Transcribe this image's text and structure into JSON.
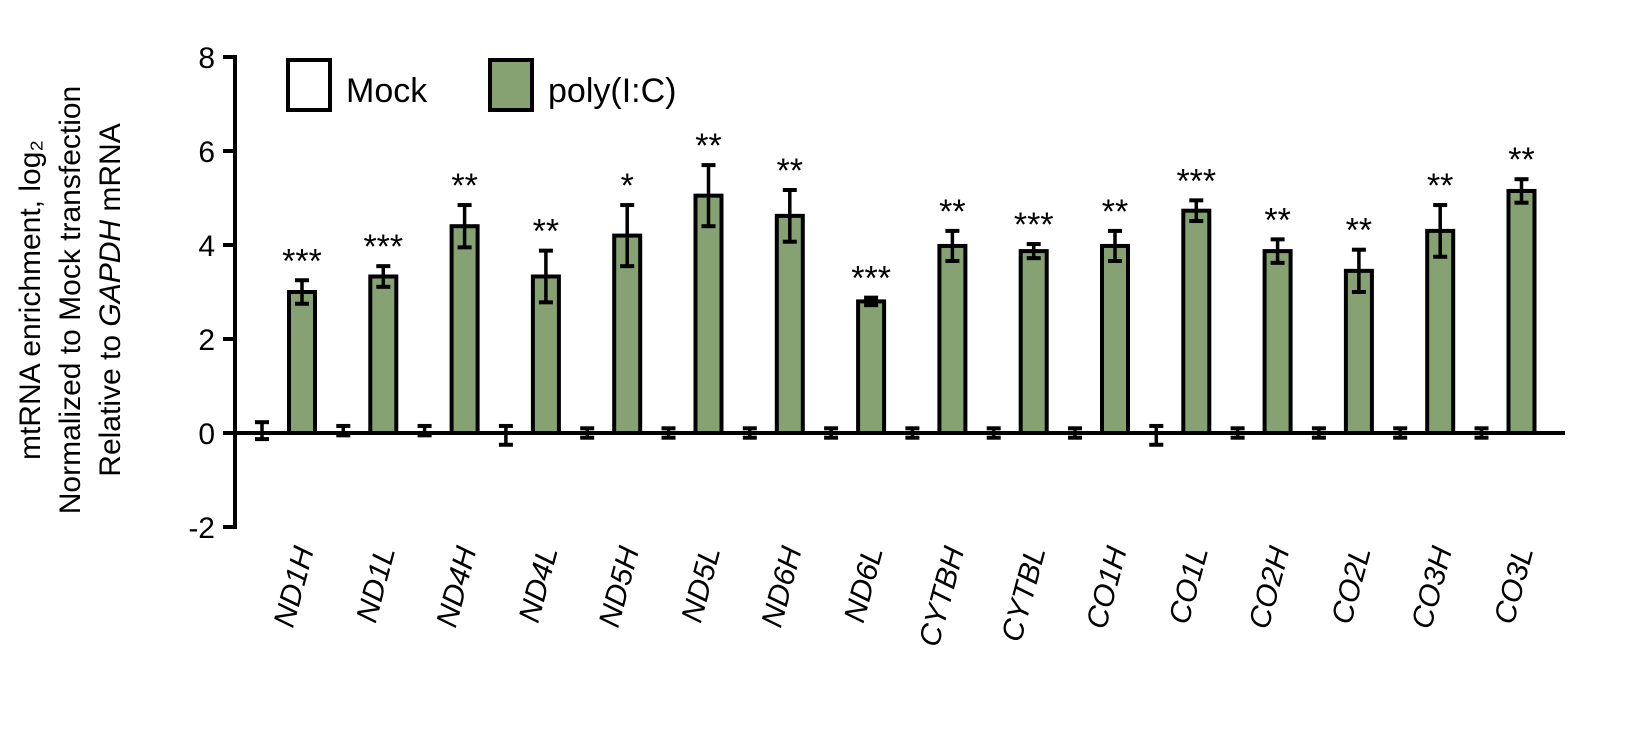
{
  "chart_data": {
    "type": "bar",
    "ylabel_lines": [
      "mtRNA enrichment, log₂",
      "Normalized to Mock transfection",
      "Relative to ",
      "GAPDH",
      " mRNA"
    ],
    "xlabel": "",
    "ylim": [
      -2,
      8
    ],
    "yticks": [
      "8",
      "6",
      "4",
      "2",
      "0",
      "-2"
    ],
    "ytick_values": [
      8,
      6,
      4,
      2,
      0,
      -2
    ],
    "grid": false,
    "legend_position": "top-left",
    "categories": [
      "ND1H",
      "ND1L",
      "ND4H",
      "ND4L",
      "ND5H",
      "ND5L",
      "ND6H",
      "ND6L",
      "CYTBH",
      "CYTBL",
      "CO1H",
      "CO1L",
      "CO2H",
      "CO2L",
      "CO3H",
      "CO3L"
    ],
    "series": [
      {
        "name": "Mock",
        "color": "#ffffff",
        "values": [
          0.05,
          0.05,
          0.05,
          -0.05,
          0,
          0,
          0,
          0,
          0,
          0,
          0,
          -0.05,
          0,
          0,
          0,
          0
        ],
        "errors": [
          0.18,
          0.1,
          0.1,
          0.2,
          0.1,
          0.1,
          0.1,
          0.1,
          0.1,
          0.1,
          0.1,
          0.2,
          0.1,
          0.1,
          0.1,
          0.1
        ]
      },
      {
        "name": "poly(I:C)",
        "color": "#87a272",
        "values": [
          3.0,
          3.33,
          4.4,
          3.33,
          4.2,
          5.05,
          4.62,
          2.8,
          3.98,
          3.87,
          3.98,
          4.73,
          3.87,
          3.45,
          4.3,
          5.15
        ],
        "errors": [
          0.25,
          0.22,
          0.45,
          0.55,
          0.65,
          0.65,
          0.55,
          0.08,
          0.32,
          0.15,
          0.32,
          0.22,
          0.25,
          0.45,
          0.55,
          0.25
        ]
      }
    ],
    "significance": [
      "***",
      "***",
      "**",
      "**",
      "*",
      "**",
      "**",
      "***",
      "**",
      "***",
      "**",
      "***",
      "**",
      "**",
      "**",
      "**"
    ]
  }
}
